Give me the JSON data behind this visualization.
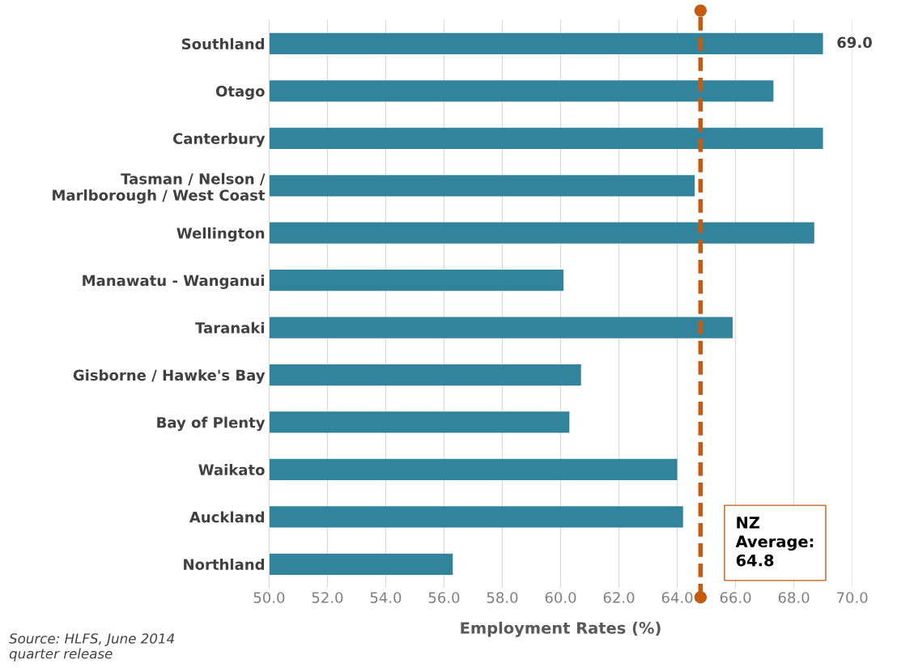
{
  "chart_data": {
    "type": "bar",
    "orientation": "horizontal",
    "categories": [
      "Southland",
      "Otago",
      "Canterbury",
      "Tasman / Nelson /\nMarlborough / West Coast",
      "Wellington",
      "Manawatu - Wanganui",
      "Taranaki",
      "Gisborne / Hawke's Bay",
      "Bay of Plenty",
      "Waikato",
      "Auckland",
      "Northland"
    ],
    "values": [
      69.0,
      67.3,
      69.0,
      64.6,
      68.7,
      60.1,
      65.9,
      60.7,
      60.3,
      64.0,
      64.2,
      56.3
    ],
    "value_labels": [
      "69.0",
      null,
      null,
      null,
      null,
      null,
      null,
      null,
      null,
      null,
      null,
      null
    ],
    "color": "#31849b",
    "xlabel": "Employment Rates (%)",
    "xlim": [
      50,
      70
    ],
    "xticks": [
      {
        "value": 50,
        "label": "50.0"
      },
      {
        "value": 52,
        "label": "52.0"
      },
      {
        "value": 54,
        "label": "54.0"
      },
      {
        "value": 56,
        "label": "56.0"
      },
      {
        "value": 58,
        "label": "58.0"
      },
      {
        "value": 60,
        "label": "60.0"
      },
      {
        "value": 62,
        "label": "62.0"
      },
      {
        "value": 64,
        "label": "64.0"
      },
      {
        "value": 66,
        "label": "66.0"
      },
      {
        "value": 68,
        "label": "68.0"
      },
      {
        "value": 70,
        "label": "70.0"
      }
    ],
    "grid": "x",
    "ref_lines": [
      {
        "axis": "x",
        "value": 64.8,
        "label": "NZ\nAverage:\n64.8",
        "color": "#c55a11",
        "line_style": "dashed"
      }
    ],
    "annotations": [
      "Source: HLFS, June 2014\nquarter release"
    ]
  }
}
